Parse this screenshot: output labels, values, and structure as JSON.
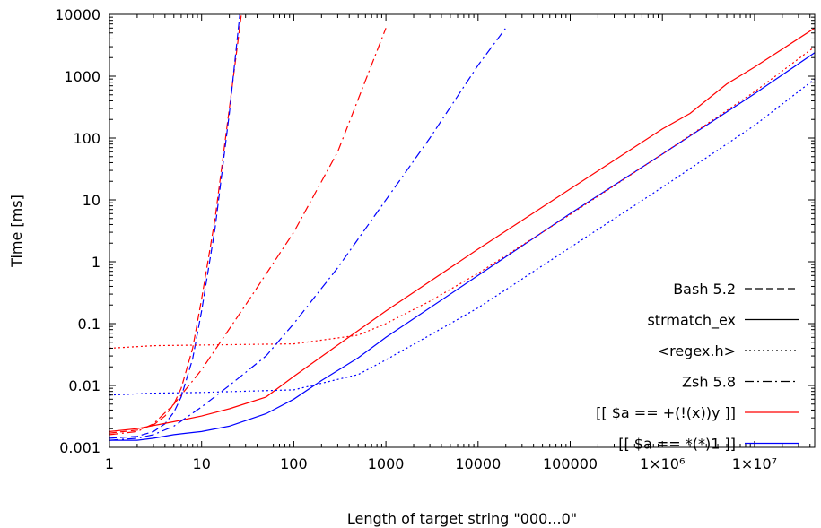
{
  "chart_data": {
    "type": "line",
    "xlabel": "Length of target string \"000...0\"",
    "ylabel": "Time [ms]",
    "x_scale": "log",
    "y_scale": "log",
    "xlim": [
      1,
      45000000
    ],
    "ylim": [
      0.001,
      10000
    ],
    "grid": false,
    "legend_position": "bottom-right",
    "x_ticks": [
      {
        "value": 1,
        "label": "1"
      },
      {
        "value": 10,
        "label": "10"
      },
      {
        "value": 100,
        "label": "100"
      },
      {
        "value": 1000,
        "label": "1000"
      },
      {
        "value": 10000,
        "label": "10000"
      },
      {
        "value": 100000,
        "label": "100000"
      },
      {
        "value": 1000000,
        "label": "1×10⁶"
      },
      {
        "value": 10000000,
        "label": "1×10⁷"
      }
    ],
    "y_ticks": [
      {
        "value": 0.001,
        "label": "0.001"
      },
      {
        "value": 0.01,
        "label": "0.01"
      },
      {
        "value": 0.1,
        "label": "0.1"
      },
      {
        "value": 1,
        "label": "1"
      },
      {
        "value": 10,
        "label": "10"
      },
      {
        "value": 100,
        "label": "100"
      },
      {
        "value": 1000,
        "label": "1000"
      },
      {
        "value": 10000,
        "label": "10000"
      }
    ],
    "legend": {
      "styles": [
        {
          "name": "Bash 5.2",
          "dash": "dashed"
        },
        {
          "name": "strmatch_ex",
          "dash": "solid"
        },
        {
          "name": "<regex.h>",
          "dash": "dotted"
        },
        {
          "name": "Zsh 5.8",
          "dash": "dashdot"
        }
      ],
      "colors": [
        {
          "name": "[[ $a == +(!(x))y ]]",
          "color": "#ff0000"
        },
        {
          "name": "[[ $a == *(*)1 ]]",
          "color": "#0000ff"
        }
      ]
    },
    "series": [
      {
        "style": "Bash 5.2",
        "color": "#ff0000",
        "x": [
          1,
          2,
          3,
          4,
          5,
          6,
          8,
          10,
          14,
          20,
          27
        ],
        "y": [
          0.0017,
          0.0019,
          0.0023,
          0.0032,
          0.005,
          0.009,
          0.04,
          0.25,
          5,
          300,
          10000
        ]
      },
      {
        "style": "Bash 5.2",
        "color": "#0000ff",
        "x": [
          1,
          2,
          3,
          4,
          5,
          6,
          8,
          10,
          14,
          20,
          26
        ],
        "y": [
          0.0014,
          0.0015,
          0.0018,
          0.0024,
          0.0037,
          0.0065,
          0.027,
          0.16,
          3.5,
          250,
          10000
        ]
      },
      {
        "style": "strmatch_ex",
        "color": "#ff0000",
        "x": [
          1,
          2,
          5,
          10,
          20,
          50,
          100,
          300,
          1000,
          10000,
          100000,
          1000000,
          2000000,
          5000000,
          10000000,
          45000000
        ],
        "y": [
          0.0018,
          0.002,
          0.0026,
          0.0032,
          0.0042,
          0.0065,
          0.014,
          0.045,
          0.16,
          1.6,
          15,
          140,
          250,
          750,
          1400,
          6000
        ]
      },
      {
        "style": "strmatch_ex",
        "color": "#0000ff",
        "x": [
          1,
          2,
          3,
          5,
          7,
          10,
          20,
          50,
          100,
          200,
          500,
          1000,
          10000,
          100000,
          1000000,
          10000000,
          45000000
        ],
        "y": [
          0.0013,
          0.0013,
          0.0014,
          0.0016,
          0.0017,
          0.0018,
          0.0022,
          0.0035,
          0.006,
          0.012,
          0.028,
          0.06,
          0.6,
          6,
          55,
          520,
          2400
        ]
      },
      {
        "style": "<regex.h>",
        "color": "#ff0000",
        "x": [
          1,
          3,
          10,
          100,
          500,
          1000,
          3000,
          10000,
          100000,
          1000000,
          10000000,
          45000000
        ],
        "y": [
          0.04,
          0.044,
          0.045,
          0.047,
          0.065,
          0.1,
          0.23,
          0.65,
          5.8,
          55,
          560,
          3000
        ]
      },
      {
        "style": "<regex.h>",
        "color": "#0000ff",
        "x": [
          1,
          3,
          10,
          100,
          500,
          1000,
          3000,
          10000,
          100000,
          1000000,
          10000000,
          45000000
        ],
        "y": [
          0.007,
          0.0075,
          0.0077,
          0.0085,
          0.015,
          0.026,
          0.065,
          0.18,
          1.7,
          16,
          160,
          900
        ]
      },
      {
        "style": "Zsh 5.8",
        "color": "#ff0000",
        "x": [
          1,
          2,
          3,
          5,
          10,
          30,
          100,
          300,
          1000
        ],
        "y": [
          0.0016,
          0.0018,
          0.0024,
          0.005,
          0.018,
          0.2,
          3,
          60,
          6000
        ]
      },
      {
        "style": "Zsh 5.8",
        "color": "#0000ff",
        "x": [
          1,
          2,
          3,
          5,
          10,
          20,
          50,
          100,
          300,
          1000,
          3000,
          10000,
          20000
        ],
        "y": [
          0.0013,
          0.0014,
          0.0016,
          0.0022,
          0.0045,
          0.01,
          0.03,
          0.1,
          0.8,
          10,
          100,
          1500,
          6000
        ]
      }
    ]
  }
}
